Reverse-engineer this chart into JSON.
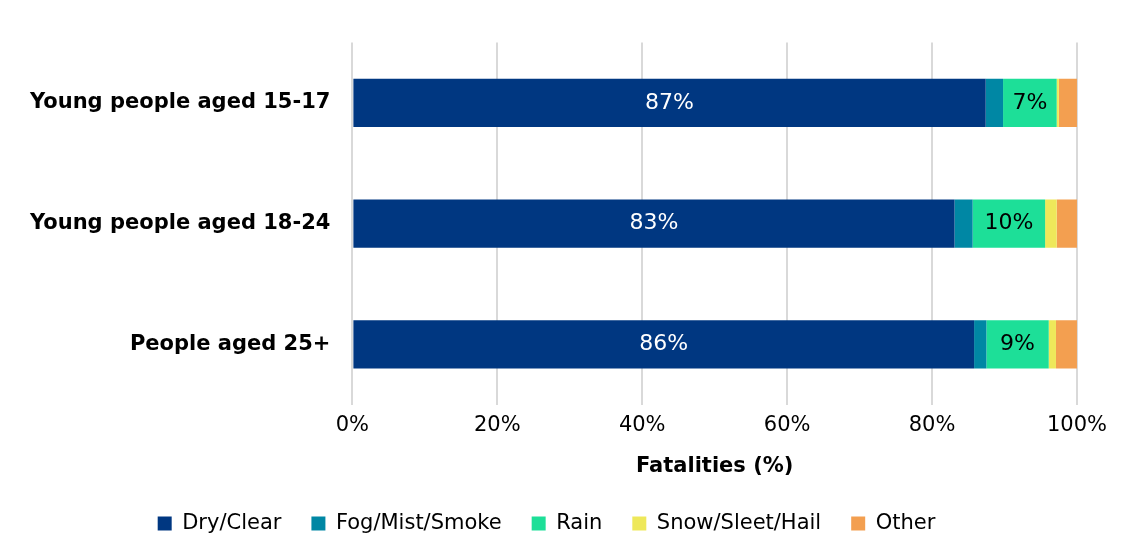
{
  "chart_data": {
    "type": "bar",
    "orientation": "horizontal",
    "stacked": true,
    "xlabel": "Fatalities (%)",
    "categories": [
      "Young people aged 15-17",
      "Young people aged 18-24",
      "People aged 25+"
    ],
    "series": [
      {
        "name": "Dry/Clear",
        "color": "#003781",
        "values": [
          87.4,
          83.1,
          85.8
        ],
        "value_labels": [
          "87%",
          "83%",
          "86%"
        ]
      },
      {
        "name": "Fog/Mist/Smoke",
        "color": "#0087a4",
        "values": [
          2.4,
          2.5,
          1.7
        ]
      },
      {
        "name": "Rain",
        "color": "#1ddf98",
        "values": [
          7.4,
          10.0,
          8.6
        ],
        "value_labels": [
          "7%",
          "10%",
          "9%"
        ]
      },
      {
        "name": "Snow/Sleet/Hail",
        "color": "#eee85a",
        "values": [
          0.3,
          1.6,
          1.0
        ]
      },
      {
        "name": "Other",
        "color": "#f39f50",
        "values": [
          2.5,
          2.8,
          2.9
        ]
      }
    ],
    "xlim": [
      0,
      100
    ],
    "xticks": [
      {
        "value": 0,
        "label": "0%"
      },
      {
        "value": 20,
        "label": "20%"
      },
      {
        "value": 40,
        "label": "40%"
      },
      {
        "value": 60,
        "label": "60%"
      },
      {
        "value": 80,
        "label": "80%"
      },
      {
        "value": 100,
        "label": "100%"
      }
    ],
    "grid": "x",
    "legend": "bottom"
  }
}
